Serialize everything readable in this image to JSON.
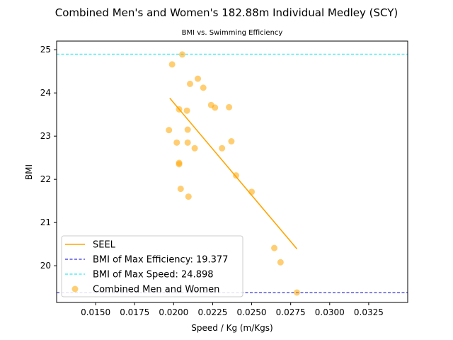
{
  "chart_data": {
    "type": "scatter",
    "title": "Combined Men's and Women's 182.88m Individual Medley (SCY)",
    "subtitle": "BMI vs. Swimming Efficiency",
    "xlabel": "Speed / Kg (m/Kgs)",
    "ylabel": "BMI",
    "xlim": [
      0.0125,
      0.035
    ],
    "ylim": [
      19.15,
      25.2
    ],
    "xticks": [
      0.015,
      0.0175,
      0.02,
      0.0225,
      0.025,
      0.0275,
      0.03,
      0.0325
    ],
    "xtick_labels": [
      "0.0150",
      "0.0175",
      "0.0200",
      "0.0225",
      "0.0250",
      "0.0275",
      "0.0300",
      "0.0325"
    ],
    "yticks": [
      20,
      21,
      22,
      23,
      24,
      25
    ],
    "ytick_labels": [
      "20",
      "21",
      "22",
      "23",
      "24",
      "25"
    ],
    "grid": false,
    "legend_position": "lower-left",
    "series": [
      {
        "name": "Combined Men and Women",
        "kind": "scatter",
        "color": "#FFA500",
        "points": [
          {
            "x": 0.02055,
            "y": 24.89
          },
          {
            "x": 0.0199,
            "y": 24.66
          },
          {
            "x": 0.02155,
            "y": 24.33
          },
          {
            "x": 0.02105,
            "y": 24.21
          },
          {
            "x": 0.0219,
            "y": 24.12
          },
          {
            "x": 0.0224,
            "y": 23.72
          },
          {
            "x": 0.02265,
            "y": 23.66
          },
          {
            "x": 0.02355,
            "y": 23.67
          },
          {
            "x": 0.02035,
            "y": 23.62
          },
          {
            "x": 0.02085,
            "y": 23.59
          },
          {
            "x": 0.0197,
            "y": 23.14
          },
          {
            "x": 0.0209,
            "y": 23.15
          },
          {
            "x": 0.0202,
            "y": 22.85
          },
          {
            "x": 0.0209,
            "y": 22.85
          },
          {
            "x": 0.0237,
            "y": 22.88
          },
          {
            "x": 0.02135,
            "y": 22.72
          },
          {
            "x": 0.0231,
            "y": 22.72
          },
          {
            "x": 0.02035,
            "y": 22.38
          },
          {
            "x": 0.02035,
            "y": 22.35
          },
          {
            "x": 0.024,
            "y": 22.09
          },
          {
            "x": 0.02045,
            "y": 21.78
          },
          {
            "x": 0.025,
            "y": 21.71
          },
          {
            "x": 0.02095,
            "y": 21.6
          },
          {
            "x": 0.02645,
            "y": 20.41
          },
          {
            "x": 0.02685,
            "y": 20.08
          },
          {
            "x": 0.0279,
            "y": 19.38
          }
        ]
      },
      {
        "name": "SEEL",
        "kind": "line",
        "color": "#FFA500",
        "points": [
          {
            "x": 0.01975,
            "y": 23.88
          },
          {
            "x": 0.0279,
            "y": 20.39
          }
        ]
      }
    ],
    "reference_lines": [
      {
        "name": "BMI of Max Efficiency: 19.377",
        "y": 19.377,
        "color": "#0000CC",
        "style": "dashed"
      },
      {
        "name": "BMI of Max Speed: 24.898",
        "y": 24.898,
        "color": "#00E5EE",
        "style": "dashed"
      }
    ],
    "legend": [
      {
        "label": "SEEL",
        "kind": "line",
        "color": "#FFA500"
      },
      {
        "label": "BMI of Max Efficiency: 19.377",
        "kind": "dashed",
        "color": "#0000CC"
      },
      {
        "label": "BMI of Max Speed: 24.898",
        "kind": "dashed",
        "color": "#00E5EE"
      },
      {
        "label": "Combined Men and Women",
        "kind": "marker",
        "color": "#FFA500"
      }
    ]
  }
}
